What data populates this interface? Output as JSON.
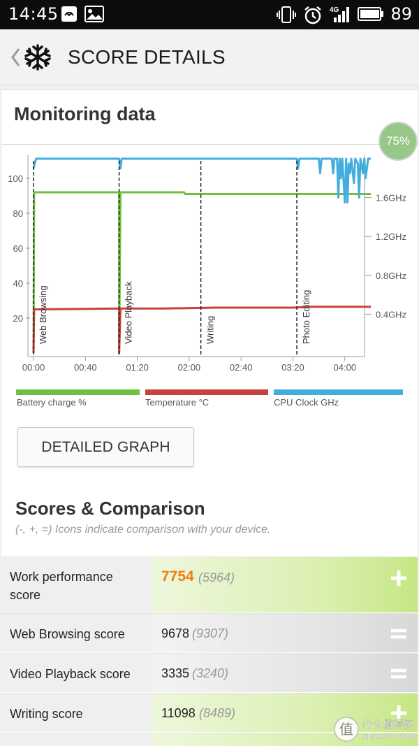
{
  "status_bar": {
    "time": "14:45",
    "battery_percent": "89",
    "network_label": "4G",
    "icons": [
      "notification-app-icon",
      "gallery-icon",
      "vibrate-icon",
      "alarm-icon",
      "signal-icon",
      "battery-icon"
    ]
  },
  "app_bar": {
    "title": "SCORE DETAILS",
    "icons": [
      "back-chevron-icon",
      "snowflake-logo-icon"
    ]
  },
  "monitoring": {
    "title": "Monitoring data",
    "badge": "75%"
  },
  "chart_data": {
    "type": "line",
    "x_ticks": [
      "00:00",
      "00:40",
      "01:20",
      "02:00",
      "02:40",
      "03:20",
      "04:00"
    ],
    "x_unit": "minutes",
    "xlim": [
      0,
      260
    ],
    "y_left_ticks": [
      "20",
      "40",
      "60",
      "80",
      "100"
    ],
    "ylim_left": [
      0,
      100
    ],
    "y_right_ticks": [
      "0.4GHz",
      "0.8GHz",
      "1.2GHz",
      "1.6GHz"
    ],
    "ylim_right_ghz": [
      0,
      2.0
    ],
    "sections": [
      {
        "label": "Web Browsing",
        "start": 0
      },
      {
        "label": "Video Playback",
        "start": 66
      },
      {
        "label": "Writing",
        "start": 129
      },
      {
        "label": "Photo Editing",
        "start": 203
      }
    ],
    "series": [
      {
        "name": "Battery charge %",
        "color": "#6ec13f",
        "points": [
          [
            0,
            0
          ],
          [
            0.5,
            92
          ],
          [
            66,
            92
          ],
          [
            66,
            0
          ],
          [
            67,
            92
          ],
          [
            116,
            92
          ],
          [
            117,
            91
          ],
          [
            260,
            91
          ]
        ]
      },
      {
        "name": "Temperature °C",
        "color": "#c8413b",
        "points": [
          [
            0,
            0
          ],
          [
            0.5,
            25
          ],
          [
            66,
            25.5
          ],
          [
            66,
            0
          ],
          [
            67,
            25.5
          ],
          [
            100,
            25.5
          ],
          [
            140,
            26
          ],
          [
            200,
            26
          ],
          [
            215,
            26.5
          ],
          [
            260,
            26.5
          ]
        ]
      },
      {
        "name": "CPU Clock GHz",
        "color": "#42aede",
        "points": [
          [
            0,
            1.9
          ],
          [
            2,
            2.0
          ],
          [
            66,
            2.0
          ],
          [
            67,
            1.9
          ],
          [
            68,
            2.0
          ],
          [
            203,
            2.0
          ],
          [
            204,
            1.9
          ],
          [
            205,
            2.0
          ],
          [
            220,
            2.0
          ],
          [
            221,
            1.85
          ],
          [
            222,
            2.0
          ],
          [
            230,
            2.0
          ],
          [
            231,
            1.85
          ],
          [
            232,
            2.0
          ],
          [
            234,
            2.0
          ],
          [
            235,
            1.6
          ],
          [
            236,
            2.0
          ],
          [
            237,
            1.8
          ],
          [
            238,
            2.0
          ],
          [
            240,
            1.55
          ],
          [
            241,
            2.0
          ],
          [
            242,
            1.55
          ],
          [
            243,
            1.95
          ],
          [
            244,
            1.85
          ],
          [
            245,
            2.0
          ],
          [
            247,
            1.75
          ],
          [
            248,
            2.0
          ],
          [
            250,
            1.95
          ],
          [
            251,
            1.6
          ],
          [
            252,
            2.0
          ],
          [
            254,
            1.85
          ],
          [
            255,
            2.0
          ],
          [
            256,
            1.8
          ],
          [
            258,
            2.0
          ],
          [
            260,
            2.0
          ]
        ]
      }
    ],
    "legend": [
      "Battery charge %",
      "Temperature °C",
      "CPU Clock GHz"
    ],
    "grid": false
  },
  "detailed_graph_button": "DETAILED GRAPH",
  "scores": {
    "title": "Scores & Comparison",
    "hint": "(-, +, =) Icons indicate comparison with your device.",
    "rows": [
      {
        "label_line1": "Work performance",
        "label_line2": "score",
        "value": "7754",
        "compare": "(5964)",
        "indicator": "+",
        "indicator_icon": "plus-icon"
      },
      {
        "label_line1": "Web Browsing score",
        "label_line2": "",
        "value": "9678",
        "compare": "(9307)",
        "indicator": "=",
        "indicator_icon": "equal-icon"
      },
      {
        "label_line1": "Video Playback score",
        "label_line2": "",
        "value": "3335",
        "compare": "(3240)",
        "indicator": "=",
        "indicator_icon": "equal-icon"
      },
      {
        "label_line1": "Writing score",
        "label_line2": "",
        "value": "11098",
        "compare": "(8489)",
        "indicator": "+",
        "indicator_icon": "plus-icon"
      }
    ]
  },
  "watermark": {
    "glyph": "值",
    "line1": "什么值得买",
    "line2": "SMZDM.COM"
  }
}
